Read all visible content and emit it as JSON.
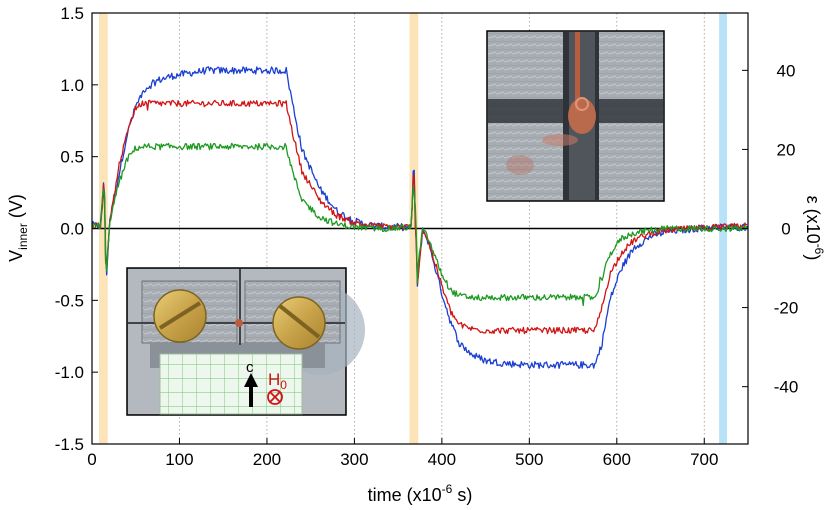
{
  "chart_data": {
    "type": "line",
    "title": "",
    "xlabel": "time (x10",
    "xlabel_exp": "-6",
    "xlabel_suffix": " s)",
    "ylabel_main": "V",
    "ylabel_sub": "inner",
    "ylabel_unit": " (V)",
    "y2label_main": "ε (x10",
    "y2label_exp": "-6",
    "y2label_suffix": ")",
    "xlim": [
      0,
      750
    ],
    "ylim": [
      -1.5,
      1.5
    ],
    "y2lim": [
      -54.5,
      54.5
    ],
    "xticks": [
      0,
      100,
      200,
      300,
      400,
      500,
      600,
      700
    ],
    "yticks": [
      -1.5,
      -1.0,
      -0.5,
      0.0,
      0.5,
      1.0,
      1.5
    ],
    "ytick_labels": [
      "-1.5",
      "-1.0",
      "-0.5",
      "0.0",
      "0.5",
      "1.0",
      "1.5"
    ],
    "y2ticks": [
      -40,
      -20,
      0,
      20,
      40
    ],
    "grid": "vertical dotted",
    "highlight_bands": [
      {
        "x0": 8,
        "x1": 18,
        "color": "#fde3b8"
      },
      {
        "x0": 363,
        "x1": 373,
        "color": "#fde3b8"
      },
      {
        "x0": 717,
        "x1": 726,
        "color": "#b8e2f7"
      }
    ],
    "series": [
      {
        "name": "blue",
        "color": "#1a3fd1",
        "plateau_pos": 1.1,
        "plateau_neg": -0.95,
        "x": [
          0,
          10,
          14,
          16,
          20,
          30,
          40,
          50,
          60,
          75,
          90,
          110,
          130,
          150,
          175,
          200,
          222,
          230,
          240,
          260,
          280,
          300,
          320,
          340,
          365,
          368,
          372,
          378,
          385,
          400,
          410,
          420,
          435,
          450,
          475,
          500,
          530,
          560,
          575,
          583,
          592,
          605,
          620,
          640,
          660,
          690,
          720,
          750
        ],
        "values": [
          0.02,
          0.02,
          0.42,
          -0.4,
          0.05,
          0.35,
          0.65,
          0.85,
          0.97,
          1.03,
          1.06,
          1.08,
          1.1,
          1.1,
          1.1,
          1.1,
          1.1,
          0.85,
          0.55,
          0.28,
          0.12,
          0.05,
          0.02,
          0.01,
          0.01,
          0.45,
          -0.4,
          0.0,
          -0.1,
          -0.45,
          -0.65,
          -0.8,
          -0.88,
          -0.92,
          -0.94,
          -0.95,
          -0.95,
          -0.95,
          -0.95,
          -0.8,
          -0.5,
          -0.28,
          -0.13,
          -0.05,
          -0.02,
          0.0,
          0.01,
          0.01
        ]
      },
      {
        "name": "red",
        "color": "#d11414",
        "plateau_pos": 0.87,
        "plateau_neg": -0.71,
        "x": [
          0,
          10,
          14,
          16,
          20,
          30,
          40,
          50,
          60,
          75,
          90,
          110,
          130,
          150,
          175,
          200,
          222,
          230,
          240,
          260,
          280,
          300,
          320,
          340,
          365,
          368,
          372,
          378,
          385,
          400,
          410,
          420,
          435,
          450,
          475,
          500,
          530,
          560,
          575,
          583,
          592,
          605,
          620,
          640,
          660,
          690,
          720,
          750
        ],
        "values": [
          0.02,
          0.02,
          0.4,
          -0.42,
          0.05,
          0.38,
          0.68,
          0.84,
          0.88,
          0.87,
          0.87,
          0.87,
          0.87,
          0.87,
          0.87,
          0.87,
          0.87,
          0.65,
          0.4,
          0.2,
          0.09,
          0.04,
          0.02,
          0.01,
          0.01,
          0.4,
          -0.38,
          0.0,
          -0.1,
          -0.4,
          -0.58,
          -0.67,
          -0.7,
          -0.71,
          -0.71,
          -0.71,
          -0.71,
          -0.71,
          -0.71,
          -0.55,
          -0.32,
          -0.17,
          -0.08,
          -0.03,
          -0.01,
          0.0,
          0.01,
          0.02
        ]
      },
      {
        "name": "green",
        "color": "#1e9a22",
        "plateau_pos": 0.57,
        "plateau_neg": -0.48,
        "x": [
          0,
          10,
          14,
          16,
          20,
          30,
          40,
          50,
          60,
          75,
          90,
          110,
          130,
          150,
          175,
          200,
          222,
          230,
          240,
          260,
          280,
          300,
          320,
          340,
          365,
          368,
          372,
          378,
          385,
          400,
          410,
          420,
          435,
          450,
          475,
          500,
          530,
          560,
          575,
          583,
          592,
          605,
          620,
          640,
          660,
          690,
          720,
          750
        ],
        "values": [
          0.02,
          0.02,
          0.3,
          -0.38,
          0.04,
          0.3,
          0.48,
          0.56,
          0.57,
          0.57,
          0.57,
          0.57,
          0.57,
          0.57,
          0.57,
          0.57,
          0.57,
          0.38,
          0.2,
          0.08,
          0.03,
          0.01,
          0.0,
          0.0,
          0.01,
          0.35,
          -0.3,
          0.0,
          -0.08,
          -0.32,
          -0.43,
          -0.47,
          -0.48,
          -0.48,
          -0.48,
          -0.48,
          -0.48,
          -0.48,
          -0.48,
          -0.35,
          -0.18,
          -0.07,
          -0.03,
          -0.01,
          0.0,
          0.0,
          0.0,
          0.0
        ]
      }
    ],
    "inset_bottom_label_c": "c",
    "inset_bottom_label_H": "H",
    "inset_bottom_label_H_sub": "0",
    "inset_bottom_symbol": "⊗"
  },
  "colors": {
    "band_orange": "#fde3b8",
    "band_blue": "#b8e2f7",
    "blue": "#1a3fd1",
    "red": "#d11414",
    "green": "#1e9a22"
  }
}
